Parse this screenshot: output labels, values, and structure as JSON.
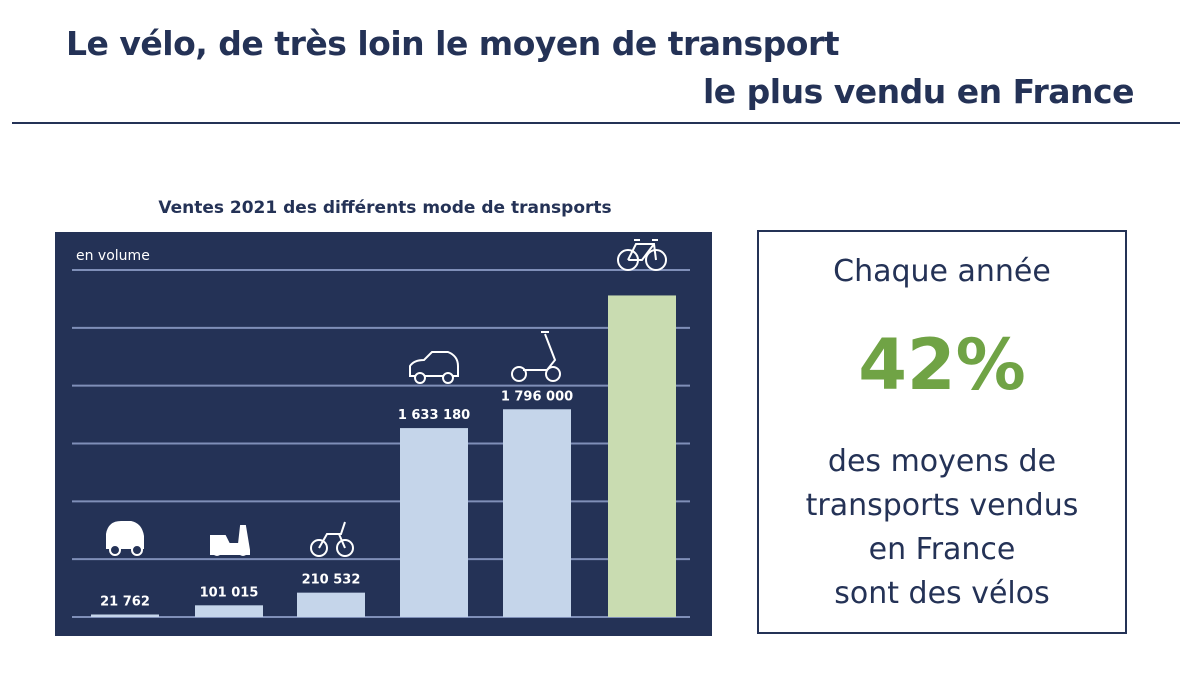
{
  "header": {
    "title_line1": "Le vélo, de très loin le moyen de transport",
    "title_line2": "le plus vendu en France"
  },
  "chart_data": {
    "type": "bar",
    "title": "Ventes 2021 des différents mode de transports",
    "ylabel": "en volume",
    "ylim": [
      0,
      3000000
    ],
    "yticks": [
      0,
      500000,
      1000000,
      1500000,
      2000000,
      2500000,
      3000000
    ],
    "grid": true,
    "categories": [
      "voiture sans permis",
      "scooter",
      "moto",
      "voiture",
      "trottinette",
      "vélo"
    ],
    "icons": [
      "microcar-icon",
      "scooter-icon",
      "motorcycle-icon",
      "car-icon",
      "kick-scooter-icon",
      "bicycle-icon"
    ],
    "values": [
      21762,
      101015,
      210532,
      1633180,
      1796000,
      2780000
    ],
    "labels": [
      "21 762",
      "101 015",
      "210 532",
      "1 633 180",
      "1 796 000",
      ""
    ],
    "colors": {
      "background": "#243256",
      "bar": "#c5d5ea",
      "highlight": "#c9dcb1",
      "grid": "#7f8fb8"
    }
  },
  "callout": {
    "line1": "Chaque année",
    "percent": "42%",
    "line2": "des moyens de",
    "line3": "transports vendus",
    "line4": "en France",
    "line5": "sont des vélos",
    "accent": "#70a345"
  }
}
